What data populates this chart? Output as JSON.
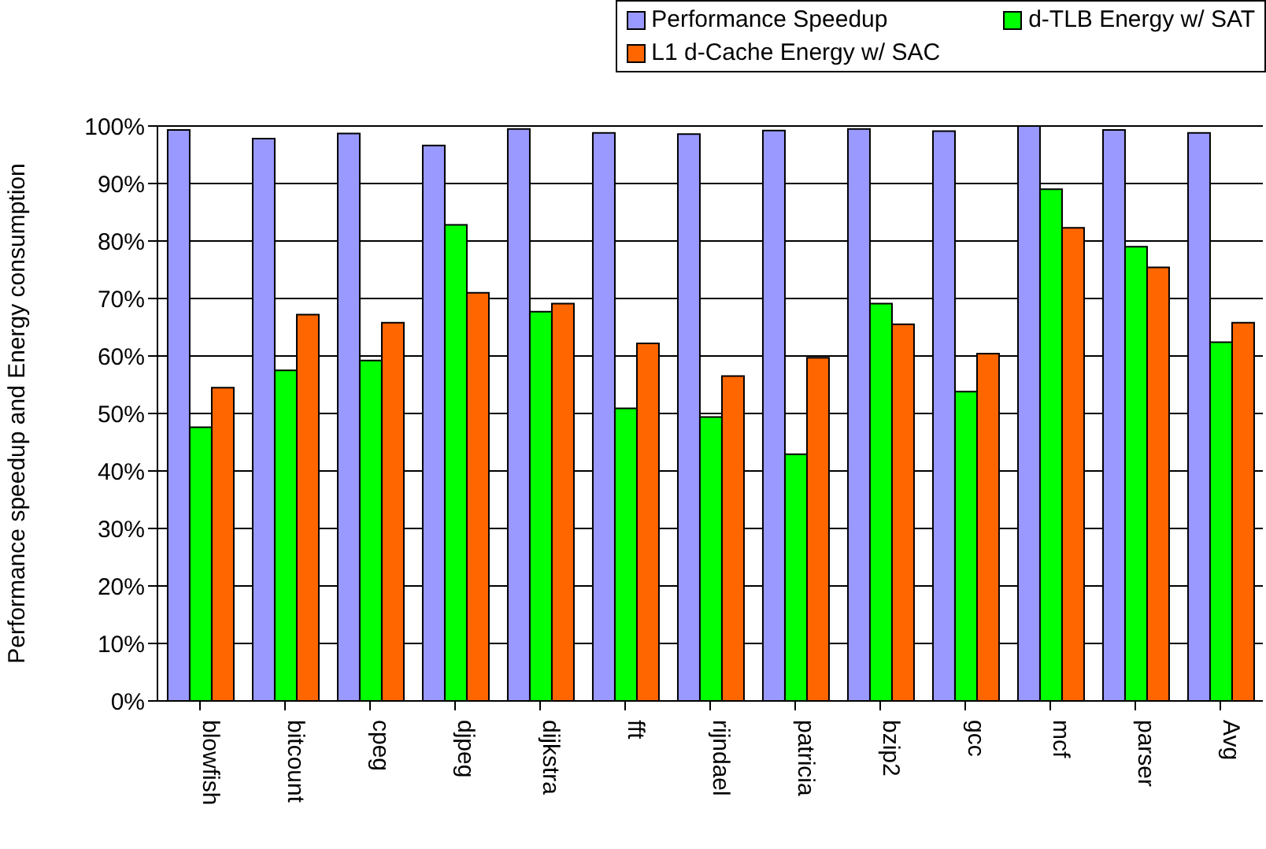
{
  "chart_data": {
    "type": "bar",
    "ylabel": "Performance speedup and Energy consumption",
    "categories": [
      "blowfish",
      "bitcount",
      "cpeg",
      "djpeg",
      "dijkstra",
      "fft",
      "rijndael",
      "patricia",
      "bzip2",
      "gcc",
      "mcf",
      "parser",
      "Avg"
    ],
    "series": [
      {
        "name": "Performance Speedup",
        "color": "#9999ff",
        "values": [
          99.3,
          97.8,
          98.7,
          96.6,
          99.5,
          98.8,
          98.6,
          99.2,
          99.5,
          99.1,
          100,
          99.3,
          98.8
        ]
      },
      {
        "name": "d-TLB Energy w/ SAT",
        "color": "#00ff00",
        "values": [
          47.6,
          57.5,
          59.2,
          82.8,
          67.7,
          50.9,
          49.4,
          42.9,
          69.1,
          53.8,
          89,
          79,
          62.4
        ]
      },
      {
        "name": "L1 d-Cache Energy w/ SAC",
        "color": "#ff6600",
        "values": [
          54.5,
          67.2,
          65.8,
          71,
          69.1,
          62.2,
          56.5,
          59.7,
          65.5,
          60.4,
          82.3,
          75.4,
          65.8
        ]
      }
    ],
    "ylim": [
      0,
      100
    ],
    "yticks": [
      {
        "value": 0,
        "label": "0%"
      },
      {
        "value": 10,
        "label": "10%"
      },
      {
        "value": 20,
        "label": "20%"
      },
      {
        "value": 30,
        "label": "30%"
      },
      {
        "value": 40,
        "label": "40%"
      },
      {
        "value": 50,
        "label": "50%"
      },
      {
        "value": 60,
        "label": "60%"
      },
      {
        "value": 70,
        "label": "70%"
      },
      {
        "value": 80,
        "label": "80%"
      },
      {
        "value": 90,
        "label": "90%"
      },
      {
        "value": 100,
        "label": "100%"
      }
    ],
    "grid": "y",
    "legend": "top right"
  }
}
